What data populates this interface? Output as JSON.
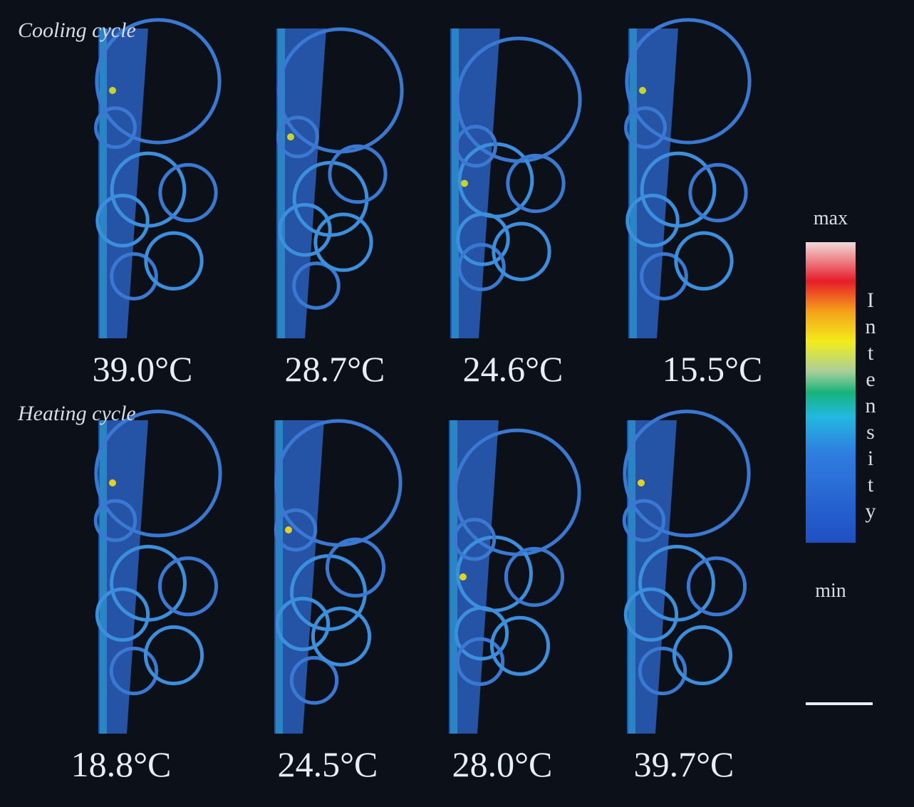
{
  "cooling": {
    "title": "Cooling cycle",
    "temperatures": [
      "39.0°C",
      "28.7°C",
      "24.6°C",
      "15.5°C"
    ]
  },
  "heating": {
    "title": "Heating cycle",
    "temperatures": [
      "18.8°C",
      "24.5°C",
      "28.0°C",
      "39.7°C"
    ]
  },
  "colorbar": {
    "max": "max",
    "min": "min",
    "label": "Intensity"
  }
}
